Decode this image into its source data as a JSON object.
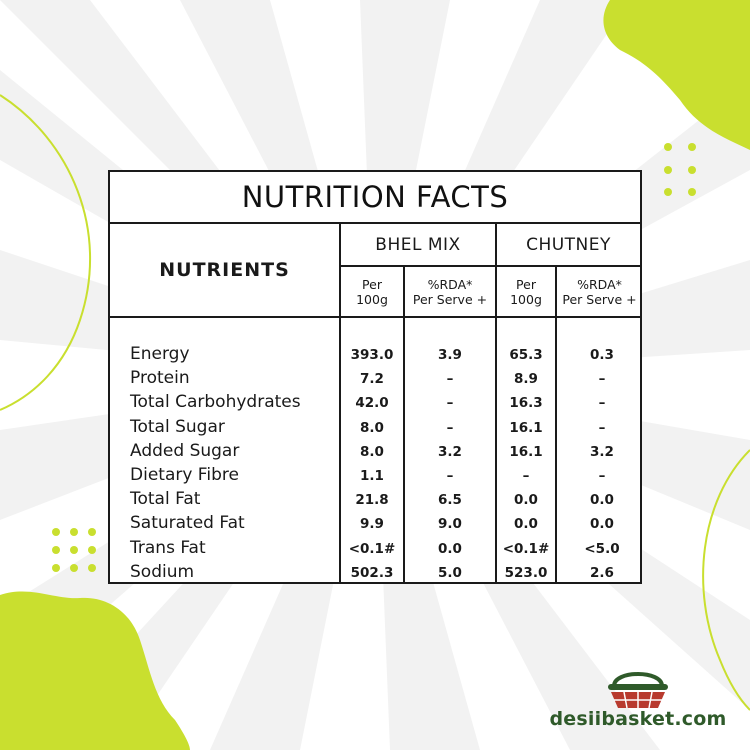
{
  "title": "NUTRITION FACTS",
  "nutrients_header": "NUTRIENTS",
  "groups": [
    {
      "name": "BHEL MIX",
      "sub": [
        {
          "line1": "Per",
          "line2": "100g"
        },
        {
          "line1": "%RDA*",
          "line2": "Per Serve +"
        }
      ]
    },
    {
      "name": "CHUTNEY",
      "sub": [
        {
          "line1": "Per",
          "line2": "100g"
        },
        {
          "line1": "%RDA*",
          "line2": "Per Serve +"
        }
      ]
    }
  ],
  "rows": [
    {
      "name": "Energy",
      "values": [
        "393.0",
        "3.9",
        "65.3",
        "0.3"
      ]
    },
    {
      "name": "Protein",
      "values": [
        "7.2",
        "–",
        "8.9",
        "–"
      ]
    },
    {
      "name": "Total Carbohydrates",
      "values": [
        "42.0",
        "–",
        "16.3",
        "–"
      ]
    },
    {
      "name": "Total Sugar",
      "values": [
        "8.0",
        "–",
        "16.1",
        "–"
      ]
    },
    {
      "name": "Added Sugar",
      "values": [
        "8.0",
        "3.2",
        "16.1",
        "3.2"
      ]
    },
    {
      "name": "Dietary Fibre",
      "values": [
        "1.1",
        "–",
        "–",
        "–"
      ]
    },
    {
      "name": "Total Fat",
      "values": [
        "21.8",
        "6.5",
        "0.0",
        "0.0"
      ]
    },
    {
      "name": "Saturated Fat",
      "values": [
        "9.9",
        "9.0",
        "0.0",
        "0.0"
      ]
    },
    {
      "name": "Trans Fat",
      "values": [
        "<0.1#",
        "0.0",
        "<0.1#",
        "<5.0"
      ]
    },
    {
      "name": "Sodium",
      "values": [
        "502.3",
        "5.0",
        "523.0",
        "2.6"
      ]
    }
  ],
  "brand": {
    "name": "desiibasket.com"
  },
  "colors": {
    "accent": "#c9df2f",
    "brand_green": "#2f5a2a",
    "brand_red": "#b83a2e",
    "rays": "#f1f1f1"
  }
}
